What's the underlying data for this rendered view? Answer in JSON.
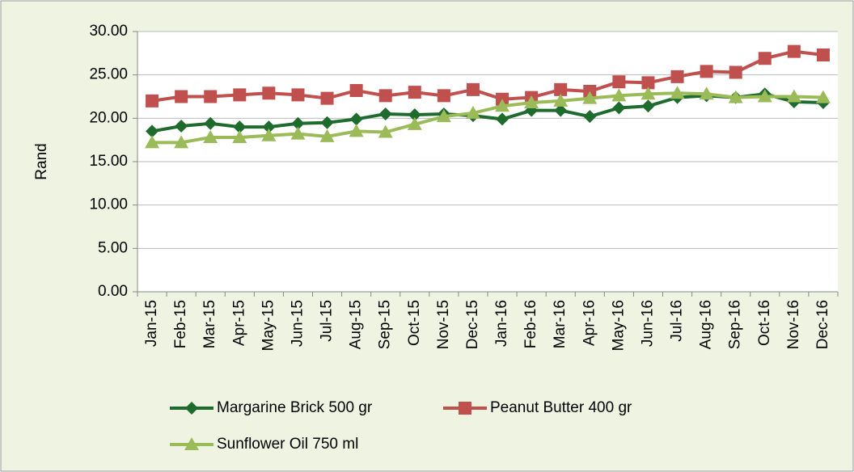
{
  "chart_data": {
    "type": "line",
    "y_label": "Rand",
    "categories": [
      "Jan-15",
      "Feb-15",
      "Mar-15",
      "Apr-15",
      "May-15",
      "Jun-15",
      "Jul-15",
      "Aug-15",
      "Sep-15",
      "Oct-15",
      "Nov-15",
      "Dec-15",
      "Jan-16",
      "Feb-16",
      "Mar-16",
      "Apr-16",
      "May-16",
      "Jun-16",
      "Jul-16",
      "Aug-16",
      "Sep-16",
      "Oct-16",
      "Nov-16",
      "Dec-16"
    ],
    "series": [
      {
        "name": "Margarine Brick 500 gr",
        "color": "#1e6b2e",
        "marker": "diamond",
        "values": [
          18.5,
          19.1,
          19.4,
          19.0,
          19.0,
          19.4,
          19.5,
          19.9,
          20.5,
          20.4,
          20.5,
          20.3,
          19.9,
          20.9,
          20.9,
          20.2,
          21.2,
          21.4,
          22.4,
          22.6,
          22.4,
          22.8,
          21.9,
          21.8
        ]
      },
      {
        "name": "Peanut Butter 400 gr",
        "color": "#c0504d",
        "marker": "square",
        "values": [
          22.0,
          22.5,
          22.5,
          22.7,
          22.9,
          22.7,
          22.3,
          23.2,
          22.6,
          23.0,
          22.6,
          23.3,
          22.2,
          22.4,
          23.3,
          23.1,
          24.2,
          24.1,
          24.8,
          25.4,
          25.3,
          26.9,
          27.7,
          27.3
        ]
      },
      {
        "name": "Sunflower Oil 750 ml",
        "color": "#9bbb59",
        "marker": "triangle",
        "values": [
          17.2,
          17.2,
          17.8,
          17.8,
          18.0,
          18.2,
          17.9,
          18.5,
          18.4,
          19.3,
          20.2,
          20.6,
          21.4,
          21.8,
          22.0,
          22.3,
          22.6,
          22.8,
          22.9,
          22.8,
          22.4,
          22.5,
          22.5,
          22.4
        ]
      }
    ],
    "ylim": [
      0,
      30
    ],
    "yticks": [
      {
        "value": 0,
        "label": "0.00"
      },
      {
        "value": 5,
        "label": "5.00"
      },
      {
        "value": 10,
        "label": "10.00"
      },
      {
        "value": 15,
        "label": "15.00"
      },
      {
        "value": 20,
        "label": "20.00"
      },
      {
        "value": 25,
        "label": "25.00"
      },
      {
        "value": 30,
        "label": "30.00"
      }
    ],
    "grid": true,
    "legend": "bottom"
  }
}
